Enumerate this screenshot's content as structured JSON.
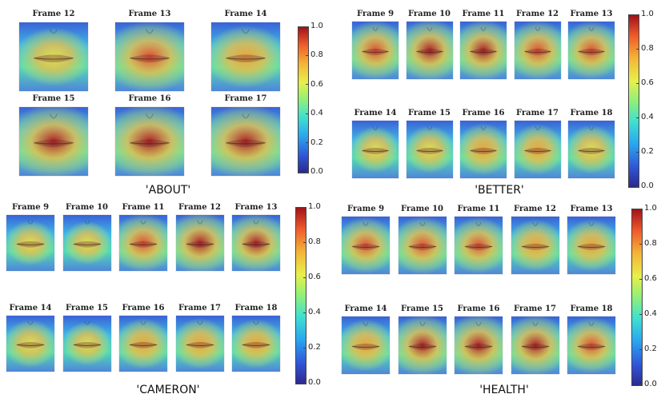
{
  "panels": [
    {
      "id": "about",
      "word": "'ABOUT'",
      "frames": [
        {
          "label": "Frame 12",
          "heat": 0.45
        },
        {
          "label": "Frame 13",
          "heat": 0.8
        },
        {
          "label": "Frame 14",
          "heat": 0.55
        },
        {
          "label": "Frame 15",
          "heat": 0.9
        },
        {
          "label": "Frame 16",
          "heat": 0.9
        },
        {
          "label": "Frame 17",
          "heat": 0.88
        }
      ]
    },
    {
      "id": "better",
      "word": "'BETTER'",
      "frames": [
        {
          "label": "Frame 9",
          "heat": 0.8
        },
        {
          "label": "Frame 10",
          "heat": 0.9
        },
        {
          "label": "Frame 11",
          "heat": 0.85
        },
        {
          "label": "Frame 12",
          "heat": 0.8
        },
        {
          "label": "Frame 13",
          "heat": 0.75
        },
        {
          "label": "Frame 14",
          "heat": 0.35
        },
        {
          "label": "Frame 15",
          "heat": 0.4
        },
        {
          "label": "Frame 16",
          "heat": 0.55
        },
        {
          "label": "Frame 17",
          "heat": 0.5
        },
        {
          "label": "Frame 18",
          "heat": 0.45
        }
      ]
    },
    {
      "id": "cameron",
      "word": "'CAMERON'",
      "frames": [
        {
          "label": "Frame 9",
          "heat": 0.35
        },
        {
          "label": "Frame 10",
          "heat": 0.3
        },
        {
          "label": "Frame 11",
          "heat": 0.8
        },
        {
          "label": "Frame 12",
          "heat": 0.95
        },
        {
          "label": "Frame 13",
          "heat": 0.85
        },
        {
          "label": "Frame 14",
          "heat": 0.45
        },
        {
          "label": "Frame 15",
          "heat": 0.3
        },
        {
          "label": "Frame 16",
          "heat": 0.55
        },
        {
          "label": "Frame 17",
          "heat": 0.55
        },
        {
          "label": "Frame 18",
          "heat": 0.5
        }
      ]
    },
    {
      "id": "health",
      "word": "'HEALTH'",
      "frames": [
        {
          "label": "Frame 9",
          "heat": 0.7
        },
        {
          "label": "Frame 10",
          "heat": 0.75
        },
        {
          "label": "Frame 11",
          "heat": 0.7
        },
        {
          "label": "Frame 12",
          "heat": 0.55
        },
        {
          "label": "Frame 13",
          "heat": 0.55
        },
        {
          "label": "Frame 14",
          "heat": 0.55
        },
        {
          "label": "Frame 15",
          "heat": 0.85
        },
        {
          "label": "Frame 16",
          "heat": 0.9
        },
        {
          "label": "Frame 17",
          "heat": 0.85
        },
        {
          "label": "Frame 18",
          "heat": 0.7
        }
      ]
    }
  ],
  "colorbar": {
    "ticks": [
      "0.0",
      "0.2",
      "0.4",
      "0.6",
      "0.8",
      "1.0"
    ]
  }
}
